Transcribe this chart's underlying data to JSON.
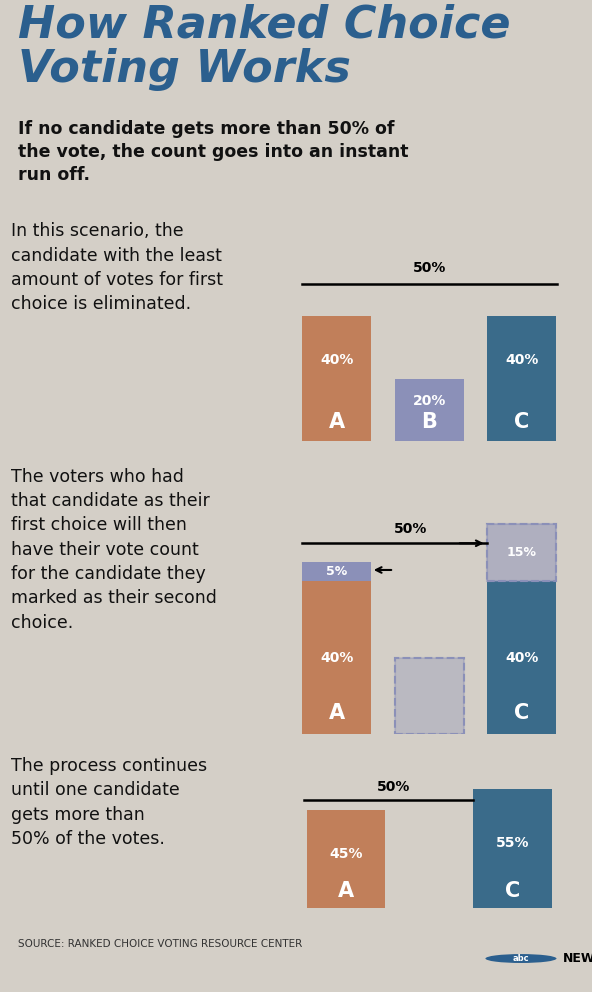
{
  "title": "How Ranked Choice\nVoting Works",
  "title_color": "#2B5F8E",
  "bg_color": "#D4CFC7",
  "panel_bg": "#FFFFFF",
  "subtitle": "If no candidate gets more than 50% of\nthe vote, the count goes into an instant\nrun off.",
  "section1_text": "In this scenario, the\ncandidate with the least\namount of votes for first\nchoice is eliminated.",
  "section2_text": "The voters who had\nthat candidate as their\nfirst choice will then\nhave their vote count\nfor the candidate they\nmarked as their second\nchoice.",
  "section3_text": "The process continues\nuntil one candidate\ngets more than\n50% of the votes.",
  "source_text": "SOURCE: RANKED CHOICE VOTING RESOURCE CENTER",
  "color_A": "#C17F5A",
  "color_B": "#8B90B8",
  "color_C": "#3A6B8A",
  "sep_color": "#999999",
  "panel_border": "#AAAAAA"
}
